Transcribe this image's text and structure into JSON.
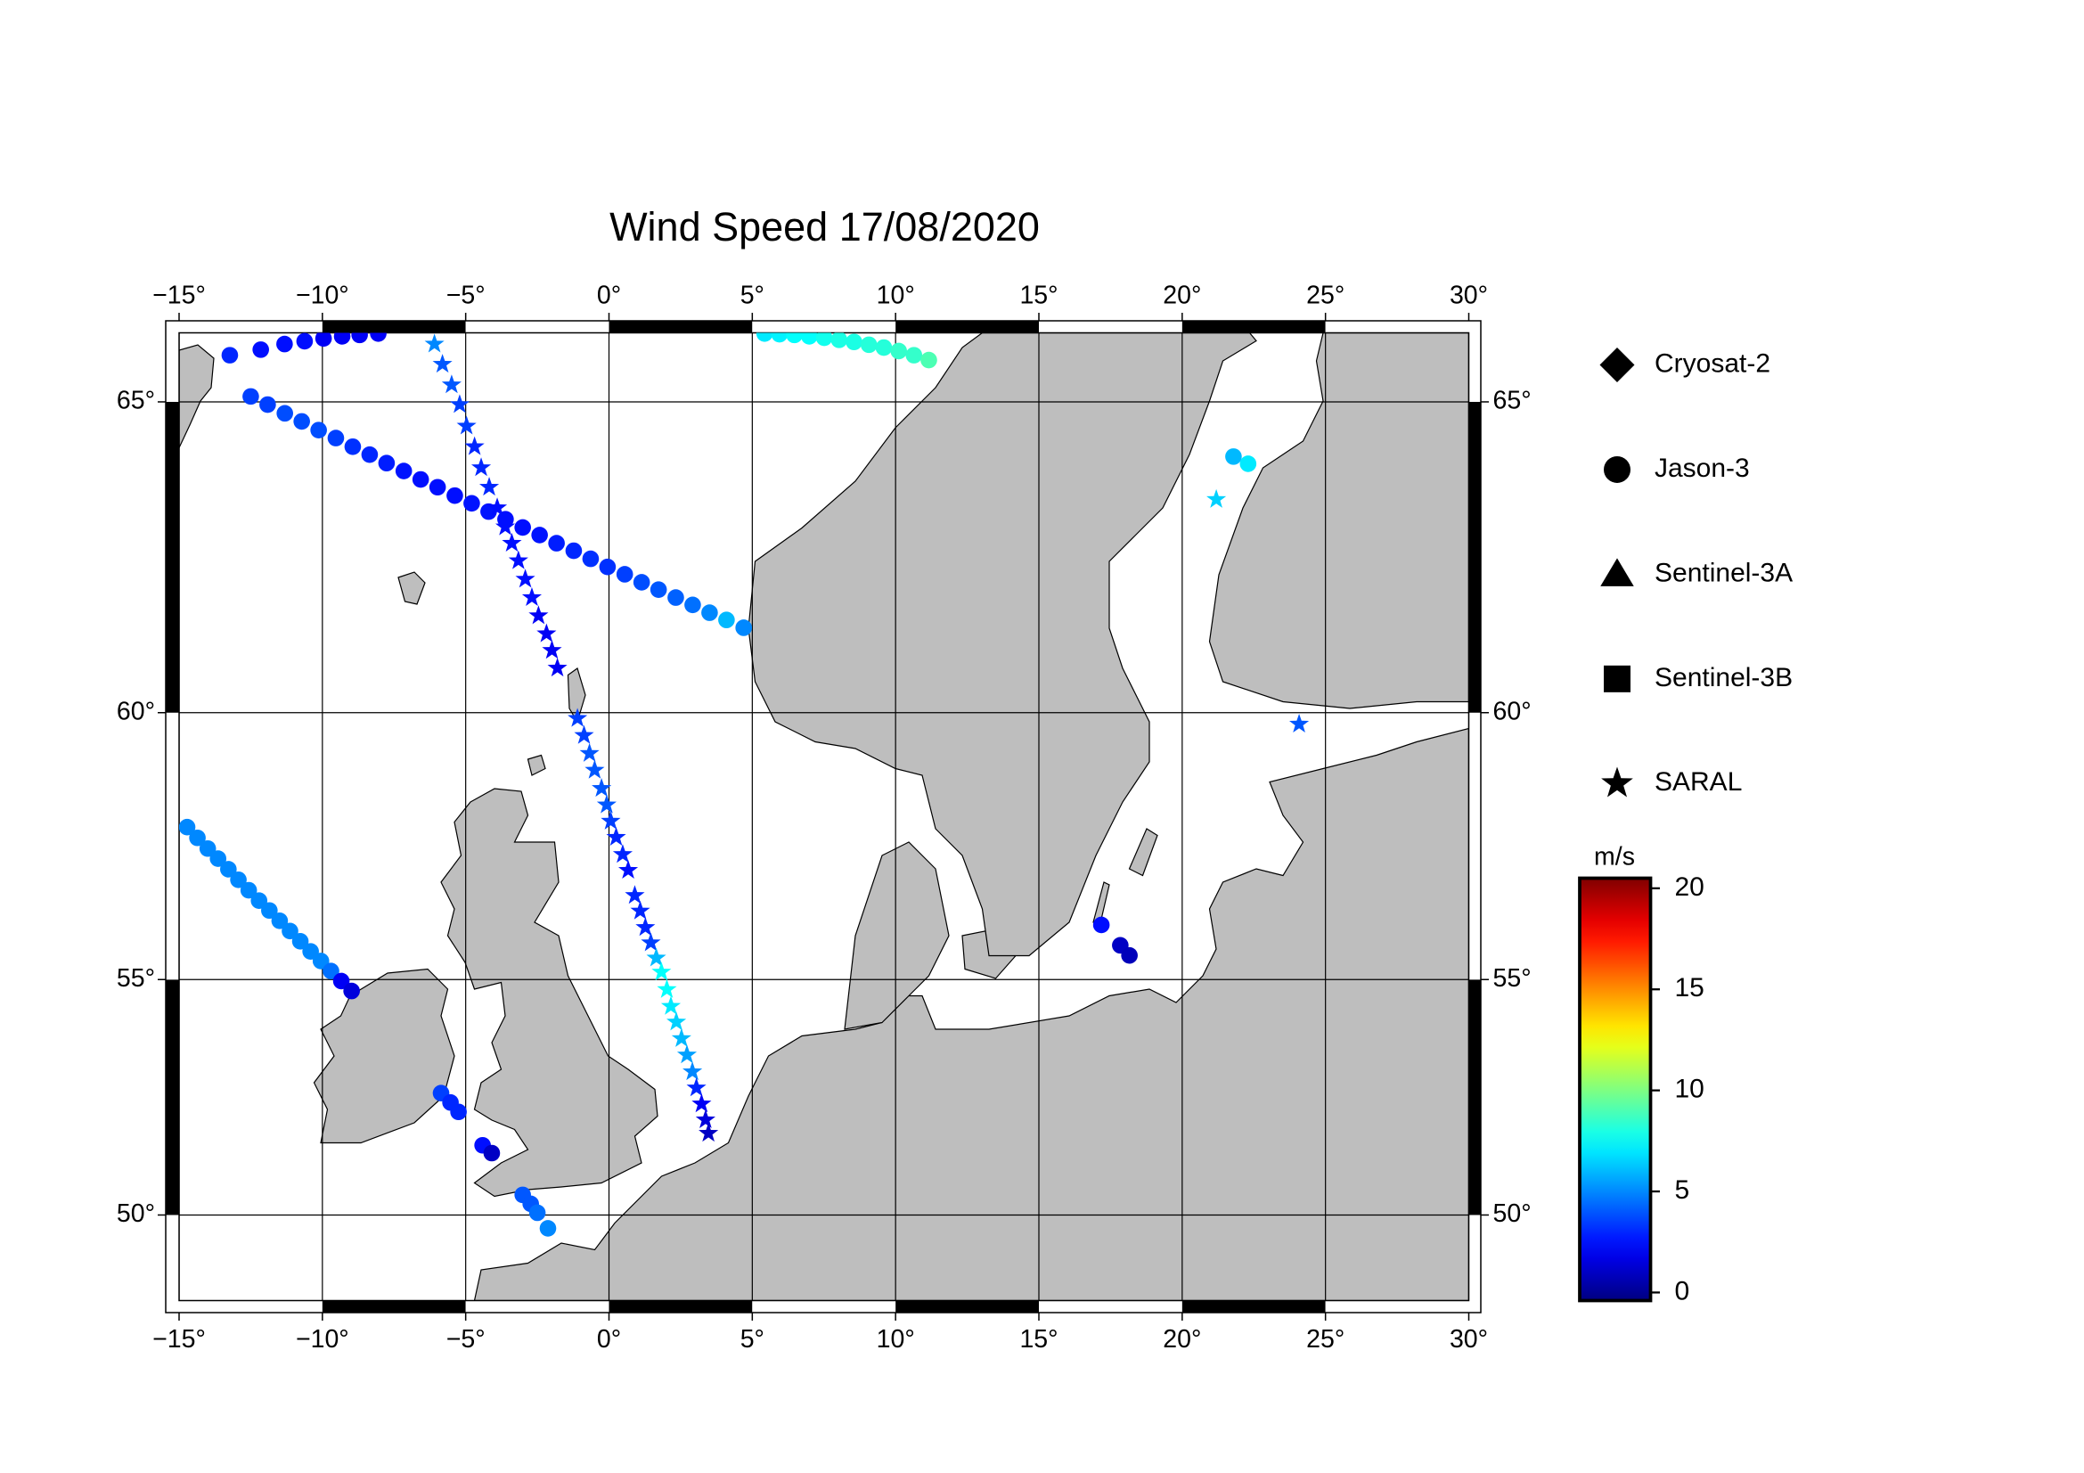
{
  "chart_data": {
    "type": "map",
    "title": "Wind Speed 17/08/2020",
    "projection": "mercator",
    "xlim": [
      -15,
      30
    ],
    "ylim": [
      48.04,
      66.0
    ],
    "grid": true,
    "legend": "right",
    "xticks": [
      {
        "value": -15,
        "label": "−15°"
      },
      {
        "value": -10,
        "label": "−10°"
      },
      {
        "value": -5,
        "label": "−5°"
      },
      {
        "value": 0,
        "label": "0°"
      },
      {
        "value": 5,
        "label": "5°"
      },
      {
        "value": 10,
        "label": "10°"
      },
      {
        "value": 15,
        "label": "15°"
      },
      {
        "value": 20,
        "label": "20°"
      },
      {
        "value": 25,
        "label": "25°"
      },
      {
        "value": 30,
        "label": "30°"
      }
    ],
    "yticks": [
      {
        "value": 50,
        "label": "50°"
      },
      {
        "value": 55,
        "label": "55°"
      },
      {
        "value": 60,
        "label": "60°"
      },
      {
        "value": 65,
        "label": "65°"
      }
    ],
    "colorbar": {
      "label": "m/s",
      "colormap": "jet",
      "lim": [
        -0.4,
        20.5
      ],
      "ticks": [
        0,
        5,
        10,
        15,
        20
      ]
    },
    "series": [
      {
        "name": "Cryosat-2",
        "marker": "diamond",
        "color": "#000000",
        "lon": [],
        "lat": [],
        "values": []
      },
      {
        "name": "Jason-3",
        "marker": "circle",
        "color": "#000000",
        "lon": [
          -13.23,
          -12.15,
          -11.32,
          -10.62,
          -9.96,
          -9.31,
          -8.7,
          -8.05,
          -12.5,
          -11.91,
          -11.31,
          -10.72,
          -10.13,
          -9.53,
          -8.94,
          -8.35,
          -7.76,
          -7.16,
          -6.57,
          -5.98,
          -5.38,
          -4.79,
          -4.2,
          -3.61,
          -3.01,
          -2.42,
          -1.83,
          -1.23,
          -0.64,
          -0.05,
          0.55,
          1.14,
          1.73,
          2.33,
          2.92,
          3.51,
          4.1,
          4.7,
          5.43,
          5.95,
          6.47,
          6.99,
          7.51,
          8.03,
          8.55,
          9.07,
          9.59,
          10.11,
          10.64,
          11.16,
          -14.72,
          -14.36,
          -14.0,
          -13.64,
          -13.28,
          -12.93,
          -12.57,
          -12.21,
          -11.85,
          -11.49,
          -11.13,
          -10.77,
          -10.41,
          -10.05,
          -9.7,
          -9.34,
          -8.98,
          -5.86,
          -5.53,
          -5.25,
          -4.41,
          -4.09,
          -3.01,
          -2.73,
          -2.5,
          -2.13,
          17.18,
          17.84,
          18.16,
          21.79,
          22.3
        ],
        "lat": [
          65.68,
          65.76,
          65.84,
          65.88,
          65.92,
          65.95,
          65.97,
          65.99,
          65.08,
          64.96,
          64.83,
          64.71,
          64.58,
          64.46,
          64.33,
          64.21,
          64.08,
          63.96,
          63.83,
          63.71,
          63.58,
          63.46,
          63.33,
          63.21,
          63.08,
          62.96,
          62.83,
          62.71,
          62.58,
          62.45,
          62.33,
          62.2,
          62.08,
          61.95,
          61.83,
          61.7,
          61.58,
          61.45,
          65.99,
          65.98,
          65.97,
          65.95,
          65.93,
          65.9,
          65.87,
          65.83,
          65.79,
          65.74,
          65.68,
          65.61,
          57.94,
          57.74,
          57.54,
          57.35,
          57.15,
          56.95,
          56.75,
          56.55,
          56.36,
          56.16,
          55.96,
          55.76,
          55.56,
          55.37,
          55.17,
          54.97,
          54.77,
          52.66,
          52.46,
          52.26,
          51.54,
          51.37,
          50.45,
          50.25,
          50.05,
          49.7,
          56.08,
          55.68,
          55.48,
          64.18,
          64.07
        ],
        "values": [
          3.0,
          2.5,
          2.5,
          2.5,
          2.0,
          2.0,
          2.0,
          2.0,
          3.5,
          3.5,
          3.8,
          3.8,
          3.8,
          3.5,
          3.2,
          3.0,
          2.8,
          2.6,
          2.5,
          2.5,
          2.5,
          2.6,
          2.6,
          2.5,
          2.5,
          2.6,
          2.8,
          3.0,
          3.2,
          3.2,
          3.5,
          3.8,
          4.0,
          4.2,
          4.5,
          5.0,
          6.0,
          5.0,
          7.0,
          7.2,
          7.5,
          7.5,
          7.8,
          8.0,
          8.0,
          8.2,
          8.2,
          8.5,
          8.5,
          9.0,
          5.0,
          5.0,
          5.0,
          5.0,
          5.0,
          5.0,
          5.0,
          5.0,
          5.0,
          5.0,
          5.0,
          5.0,
          5.0,
          5.0,
          4.5,
          2.0,
          1.5,
          3.5,
          3.0,
          3.0,
          2.5,
          1.0,
          4.0,
          4.0,
          4.5,
          5.0,
          2.5,
          1.0,
          0.8,
          6.0,
          7.0
        ]
      },
      {
        "name": "Sentinel-3A",
        "marker": "triangle",
        "color": "#000000",
        "lon": [],
        "lat": [],
        "values": []
      },
      {
        "name": "Sentinel-3B",
        "marker": "square",
        "color": "#000000",
        "lon": [],
        "lat": [],
        "values": []
      },
      {
        "name": "SARAL",
        "marker": "star",
        "color": "#000000",
        "lon": [
          -6.09,
          -5.81,
          -5.49,
          -5.21,
          -4.97,
          -4.69,
          -4.46,
          -4.18,
          -3.9,
          -3.62,
          -3.39,
          -3.16,
          -2.92,
          -2.69,
          -2.46,
          -2.18,
          -1.99,
          -1.8,
          -1.1,
          -0.87,
          -0.68,
          -0.5,
          -0.26,
          -0.08,
          0.06,
          0.25,
          0.48,
          0.67,
          0.9,
          1.09,
          1.27,
          1.46,
          1.65,
          1.83,
          2.02,
          2.16,
          2.35,
          2.53,
          2.72,
          2.91,
          3.05,
          3.23,
          3.37,
          3.47,
          21.19,
          24.08
        ],
        "lat": [
          65.84,
          65.55,
          65.25,
          64.96,
          64.64,
          64.33,
          64.01,
          63.71,
          63.39,
          63.09,
          62.83,
          62.55,
          62.25,
          61.95,
          61.65,
          61.35,
          61.07,
          60.77,
          59.9,
          59.6,
          59.28,
          58.98,
          58.65,
          58.35,
          58.05,
          57.75,
          57.43,
          57.13,
          56.65,
          56.35,
          56.03,
          55.73,
          55.43,
          55.15,
          54.8,
          54.46,
          54.14,
          53.8,
          53.46,
          53.11,
          52.77,
          52.43,
          52.09,
          51.8,
          63.52,
          59.8
        ],
        "values": [
          5.0,
          4.0,
          4.0,
          3.5,
          3.5,
          3.0,
          3.0,
          3.0,
          2.5,
          2.5,
          2.5,
          2.5,
          2.5,
          2.5,
          2.0,
          2.0,
          2.0,
          2.0,
          3.5,
          3.5,
          4.0,
          4.0,
          4.0,
          4.0,
          3.5,
          3.0,
          3.0,
          2.5,
          3.0,
          3.0,
          3.0,
          3.5,
          6.0,
          7.5,
          7.5,
          7.0,
          6.5,
          6.0,
          5.5,
          5.0,
          3.0,
          2.0,
          1.5,
          1.0,
          6.5,
          4.0
        ]
      }
    ]
  }
}
